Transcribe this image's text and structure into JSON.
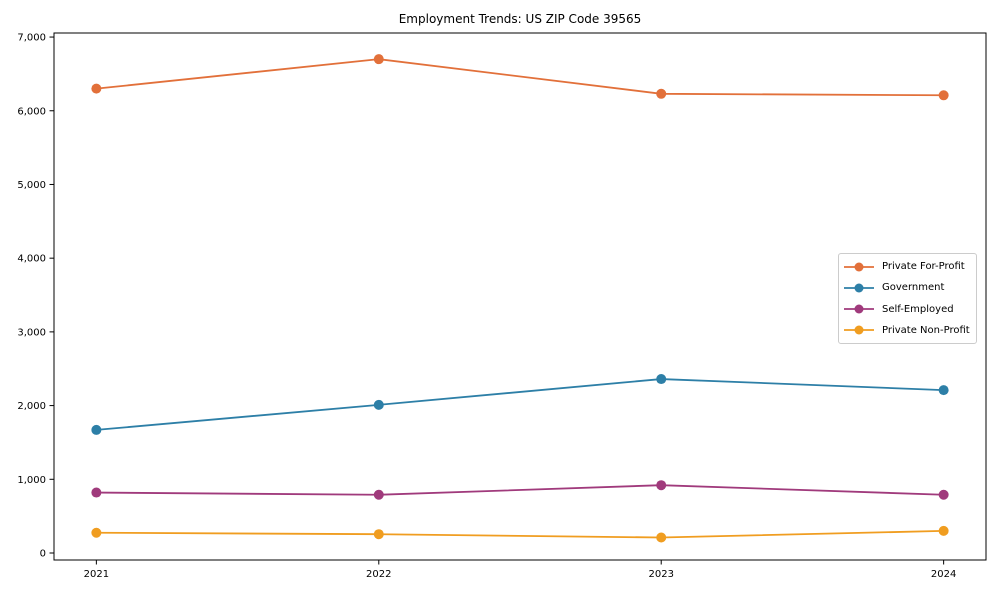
{
  "figure": {
    "title": "Employment Trends: US ZIP Code 39565",
    "background_color": "#ffffff",
    "frame_color": "#000000",
    "legend_border_color": "#cccccc"
  },
  "chart_data": {
    "type": "line",
    "title": "Employment Trends: US ZIP Code 39565",
    "xlabel": "",
    "ylabel": "",
    "x": [
      2021,
      2022,
      2023,
      2024
    ],
    "x_tick_labels": [
      "2021",
      "2022",
      "2023",
      "2024"
    ],
    "y_tick_values": [
      0,
      1000,
      2000,
      3000,
      4000,
      5000,
      6000,
      7000
    ],
    "y_tick_labels": [
      "0",
      "1,000",
      "2,000",
      "3,000",
      "4,000",
      "5,000",
      "6,000",
      "7,000"
    ],
    "xlim": [
      2020.85,
      2024.15
    ],
    "ylim": [
      -95,
      7055
    ],
    "grid": false,
    "legend_position": "center right",
    "marker": "circle",
    "series": [
      {
        "name": "Private For-Profit",
        "color": "#e2703a",
        "values": [
          6300,
          6700,
          6230,
          6210
        ]
      },
      {
        "name": "Government",
        "color": "#2d7fa7",
        "values": [
          1670,
          2010,
          2360,
          2210
        ]
      },
      {
        "name": "Self-Employed",
        "color": "#a03a7c",
        "values": [
          820,
          790,
          920,
          790
        ]
      },
      {
        "name": "Private Non-Profit",
        "color": "#f09d20",
        "values": [
          275,
          255,
          210,
          300
        ]
      }
    ]
  }
}
